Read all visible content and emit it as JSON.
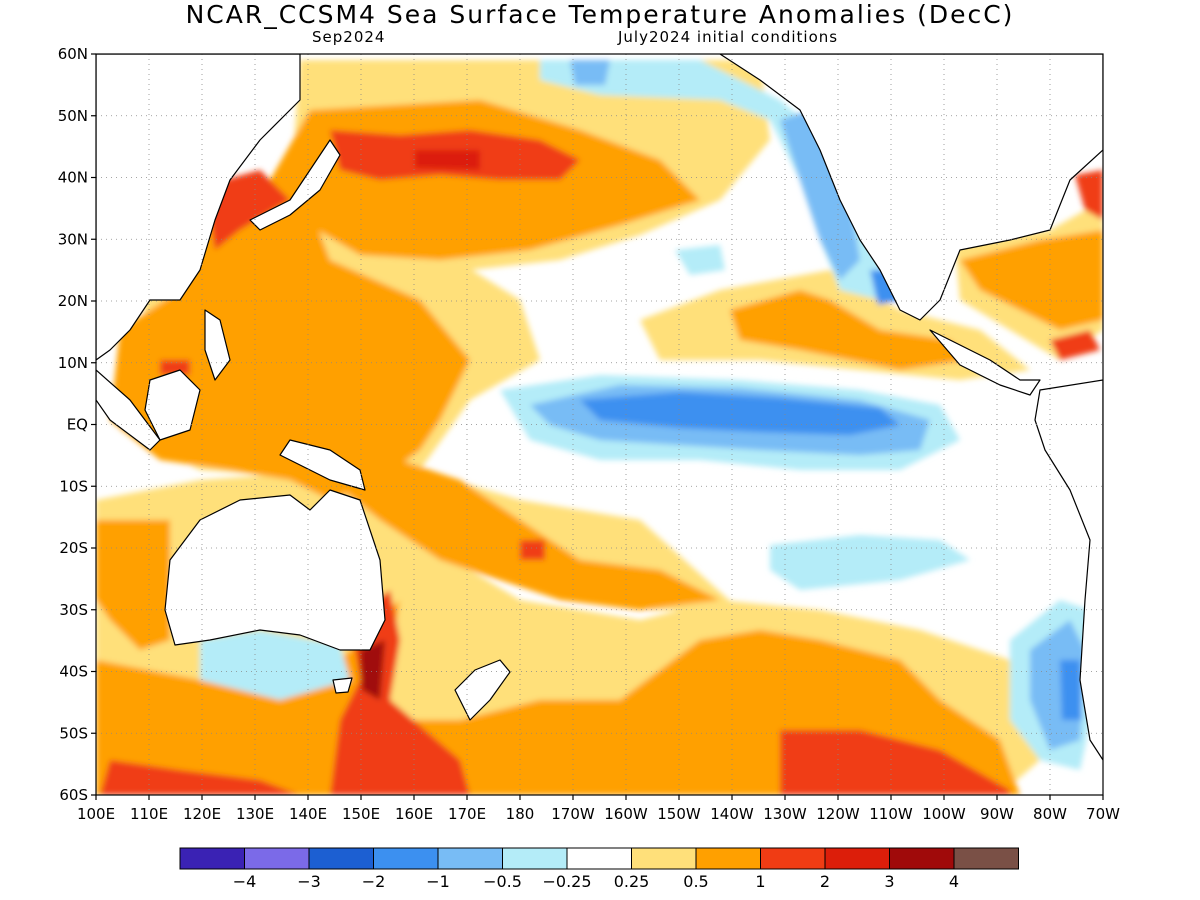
{
  "title": "NCAR_CCSM4 Sea Surface Temperature Anomalies (DecC)",
  "subtitle_left": "Sep2024",
  "subtitle_right": "July2024 initial conditions",
  "lat_labels": [
    "60N",
    "50N",
    "40N",
    "30N",
    "20N",
    "10N",
    "EQ",
    "10S",
    "20S",
    "30S",
    "40S",
    "50S",
    "60S"
  ],
  "lon_labels": [
    "100E",
    "110E",
    "120E",
    "130E",
    "140E",
    "150E",
    "160E",
    "170E",
    "180",
    "170W",
    "160W",
    "150W",
    "140W",
    "130W",
    "120W",
    "110W",
    "100W",
    "90W",
    "80W",
    "70W"
  ],
  "colorbar": {
    "colors": [
      "#3a22b4",
      "#7b6ae8",
      "#1c5fd2",
      "#3c90f0",
      "#78bcf5",
      "#b4ecf8",
      "#ffffff",
      "#ffe07a",
      "#ffa000",
      "#f03c14",
      "#dc1e0a",
      "#a00a0a",
      "#7a5046"
    ],
    "labels": [
      "-4",
      "-3",
      "-2",
      "-1",
      "-0.5",
      "-0.25",
      "0.25",
      "0.5",
      "1",
      "2",
      "3",
      "4"
    ]
  }
}
